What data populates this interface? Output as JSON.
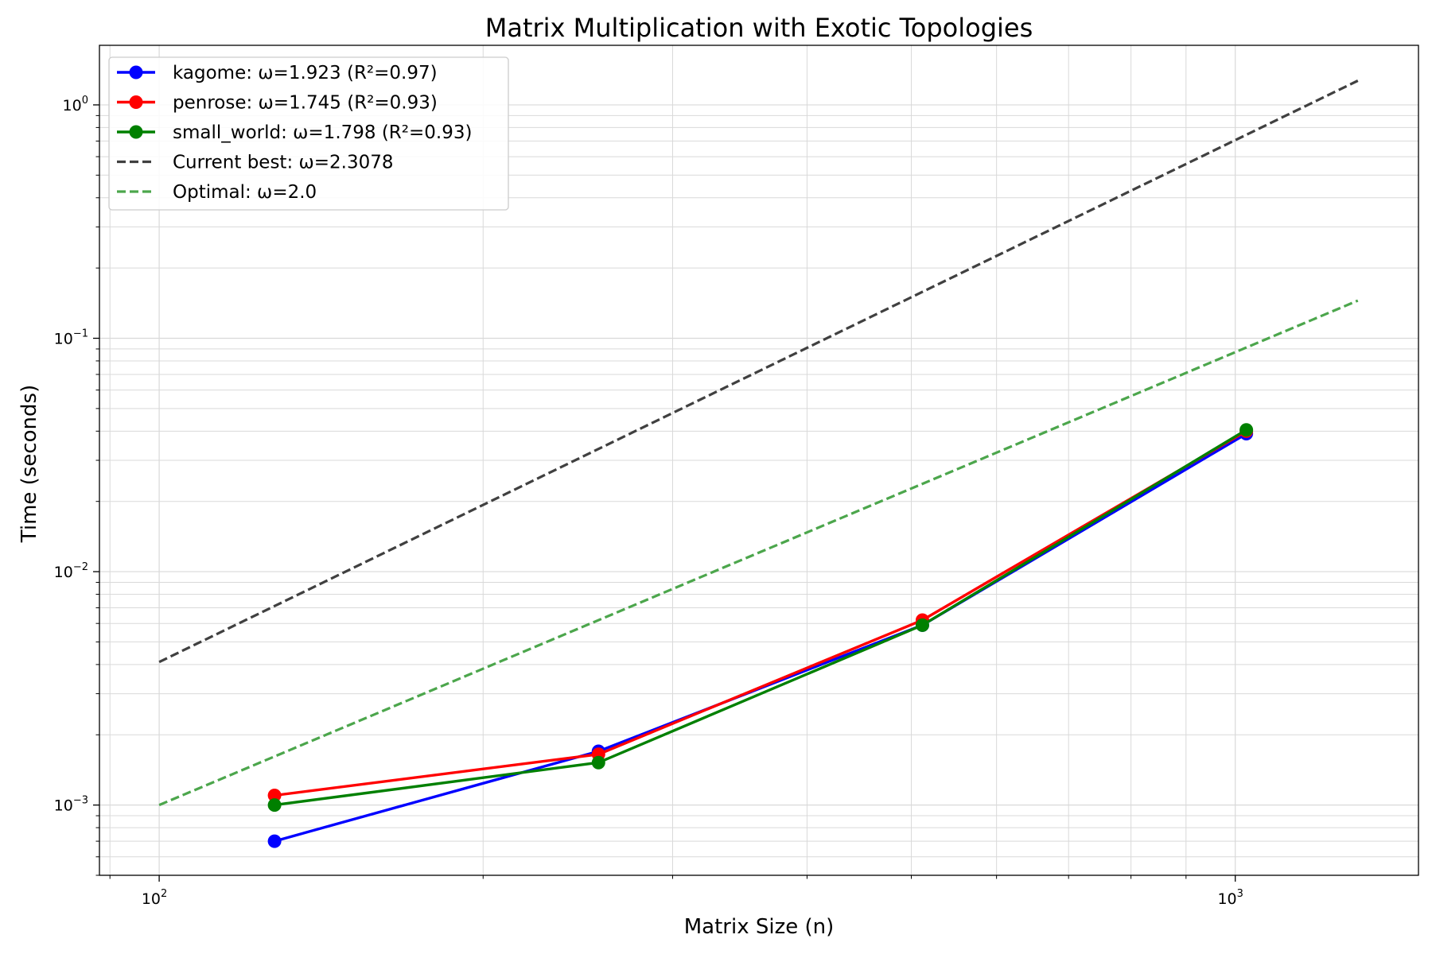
{
  "chart_data": {
    "type": "line",
    "title": "Matrix Multiplication with Exotic Topologies",
    "xlabel": "Matrix Size (n)",
    "ylabel": "Time (seconds)",
    "xscale": "log",
    "yscale": "log",
    "xlim": [
      88,
      1480
    ],
    "ylim": [
      0.0005,
      1.8
    ],
    "grid": true,
    "legend_position": "top-left",
    "x_ticks": [
      {
        "value": 100,
        "base": "10",
        "exp": "2"
      },
      {
        "value": 1000,
        "base": "10",
        "exp": "3"
      }
    ],
    "y_ticks": [
      {
        "value": 0.001,
        "base": "10",
        "exp": "−3"
      },
      {
        "value": 0.01,
        "base": "10",
        "exp": "−2"
      },
      {
        "value": 0.1,
        "base": "10",
        "exp": "−1"
      },
      {
        "value": 1,
        "base": "10",
        "exp": "0"
      }
    ],
    "series": [
      {
        "name": "kagome: ω=1.923 (R²=0.97)",
        "color": "#0000ff",
        "style": "solid-marker",
        "x": [
          128,
          256,
          512,
          1024
        ],
        "y": [
          0.0007,
          0.0017,
          0.0059,
          0.039
        ]
      },
      {
        "name": "penrose: ω=1.745 (R²=0.93)",
        "color": "#ff0000",
        "style": "solid-marker",
        "x": [
          128,
          256,
          512,
          1024
        ],
        "y": [
          0.0011,
          0.00165,
          0.0062,
          0.04
        ]
      },
      {
        "name": "small_world: ω=1.798 (R²=0.93)",
        "color": "#008000",
        "style": "solid-marker",
        "x": [
          128,
          256,
          512,
          1024
        ],
        "y": [
          0.001,
          0.00152,
          0.0059,
          0.0405
        ]
      },
      {
        "name": "Current best: ω=2.3078",
        "color": "#404040",
        "style": "dashed",
        "x": [
          100,
          1300
        ],
        "y": [
          0.0041,
          1.27
        ]
      },
      {
        "name": "Optimal: ω=2.0",
        "color": "#4ca64c",
        "style": "dashed",
        "x": [
          100,
          1300
        ],
        "y": [
          0.001,
          0.145
        ]
      }
    ]
  }
}
